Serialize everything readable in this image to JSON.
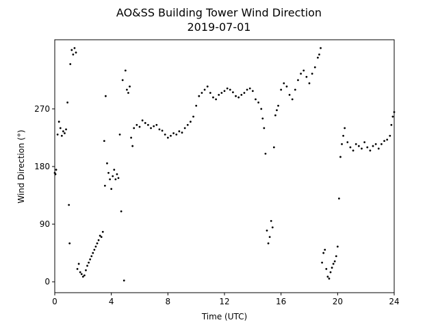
{
  "chart_data": {
    "type": "scatter",
    "title": "AO&SS Building Tower Wind Direction",
    "subtitle": "2019-07-01",
    "x_label": "Time (UTC)",
    "y_label": "Wind Direction (°)",
    "color": "#000000",
    "xlim": [
      0,
      24
    ],
    "xticks": [
      0,
      4,
      8,
      12,
      16,
      20,
      24
    ],
    "ylim": [
      -17,
      378
    ],
    "yticks": [
      0,
      90,
      180,
      270
    ],
    "x": [
      0.0,
      0.05,
      0.1,
      0.2,
      0.3,
      0.4,
      0.5,
      0.6,
      0.7,
      0.8,
      0.9,
      1.0,
      1.05,
      1.1,
      1.2,
      1.3,
      1.4,
      1.5,
      1.6,
      1.7,
      1.8,
      1.9,
      2.0,
      2.1,
      2.2,
      2.3,
      2.4,
      2.5,
      2.6,
      2.7,
      2.8,
      2.9,
      3.0,
      3.1,
      3.2,
      3.3,
      3.4,
      3.5,
      3.55,
      3.6,
      3.7,
      3.8,
      3.9,
      4.0,
      4.1,
      4.2,
      4.3,
      4.4,
      4.5,
      4.6,
      4.7,
      4.8,
      4.9,
      5.0,
      5.1,
      5.2,
      5.3,
      5.4,
      5.5,
      5.6,
      5.8,
      6.0,
      6.2,
      6.4,
      6.6,
      6.8,
      7.0,
      7.2,
      7.4,
      7.6,
      7.8,
      8.0,
      8.2,
      8.4,
      8.6,
      8.8,
      9.0,
      9.2,
      9.4,
      9.6,
      9.8,
      10.0,
      10.2,
      10.4,
      10.6,
      10.8,
      11.0,
      11.2,
      11.4,
      11.6,
      11.8,
      12.0,
      12.2,
      12.4,
      12.6,
      12.8,
      13.0,
      13.2,
      13.4,
      13.6,
      13.8,
      14.0,
      14.2,
      14.4,
      14.6,
      14.7,
      14.8,
      14.9,
      15.0,
      15.1,
      15.2,
      15.3,
      15.4,
      15.5,
      15.6,
      15.7,
      15.8,
      16.0,
      16.2,
      16.4,
      16.6,
      16.8,
      17.0,
      17.2,
      17.4,
      17.6,
      17.8,
      18.0,
      18.2,
      18.4,
      18.6,
      18.7,
      18.8,
      18.9,
      19.0,
      19.1,
      19.2,
      19.3,
      19.4,
      19.5,
      19.6,
      19.7,
      19.8,
      19.9,
      20.0,
      20.1,
      20.2,
      20.3,
      20.4,
      20.5,
      20.7,
      20.9,
      21.1,
      21.3,
      21.5,
      21.7,
      21.9,
      22.1,
      22.3,
      22.5,
      22.7,
      22.9,
      23.1,
      23.3,
      23.5,
      23.7,
      23.8,
      23.9,
      24.0
    ],
    "values": [
      170,
      168,
      175,
      230,
      250,
      240,
      228,
      235,
      232,
      238,
      280,
      120,
      60,
      340,
      362,
      355,
      365,
      358,
      20,
      28,
      15,
      12,
      8,
      10,
      18,
      25,
      30,
      35,
      40,
      45,
      50,
      55,
      60,
      65,
      72,
      70,
      78,
      220,
      150,
      290,
      185,
      170,
      160,
      145,
      165,
      175,
      160,
      168,
      162,
      230,
      110,
      315,
      2,
      330,
      300,
      295,
      305,
      225,
      212,
      240,
      245,
      242,
      252,
      248,
      245,
      240,
      243,
      245,
      238,
      236,
      230,
      225,
      228,
      232,
      230,
      235,
      233,
      240,
      245,
      250,
      258,
      275,
      290,
      295,
      300,
      305,
      295,
      288,
      285,
      292,
      295,
      298,
      302,
      300,
      296,
      290,
      288,
      292,
      295,
      300,
      302,
      298,
      285,
      280,
      270,
      255,
      240,
      200,
      80,
      60,
      70,
      95,
      85,
      210,
      260,
      268,
      275,
      300,
      310,
      305,
      292,
      285,
      300,
      315,
      325,
      330,
      320,
      310,
      325,
      335,
      350,
      355,
      365,
      30,
      45,
      50,
      20,
      8,
      5,
      15,
      22,
      28,
      32,
      40,
      55,
      130,
      195,
      215,
      228,
      240,
      218,
      210,
      205,
      215,
      212,
      208,
      218,
      210,
      205,
      212,
      215,
      208,
      215,
      220,
      222,
      228,
      245,
      258,
      265
    ]
  }
}
